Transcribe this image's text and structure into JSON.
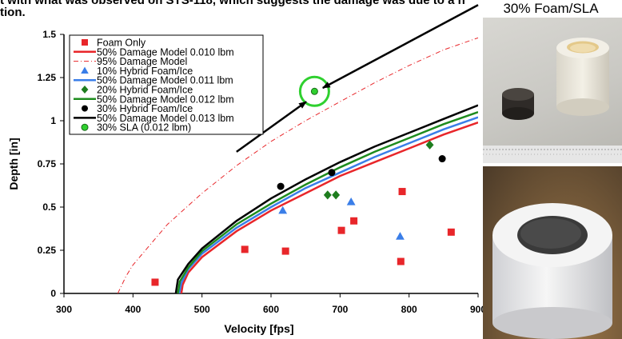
{
  "header_text": {
    "line1": "t with what was observed on STS-118, which suggests the damage was due to a h",
    "line2": "tion."
  },
  "photo_label": "30% Foam/SLA",
  "photos": {
    "top": "foam-cylinder-and-dark-sla-puck-photo",
    "bottom": "sla-core-in-foam-cylinder-photo"
  },
  "chart_data": {
    "type": "scatter",
    "xlabel": "Velocity [fps]",
    "ylabel": "Depth [in]",
    "xlim": [
      300,
      900
    ],
    "ylim": [
      0,
      1.5
    ],
    "xticks": [
      "300",
      "400",
      "500",
      "600",
      "700",
      "800",
      "900"
    ],
    "yticks": [
      "0",
      "0.25",
      "0.5",
      "0.75",
      "1",
      "1.25",
      "1.5"
    ],
    "grid": false,
    "legend_position": "top-left",
    "series": [
      {
        "name": "Foam Only",
        "kind": "points",
        "marker": "square",
        "color": "#e8262a",
        "points": [
          [
            432,
            0.065
          ],
          [
            562,
            0.255
          ],
          [
            621,
            0.245
          ],
          [
            702,
            0.365
          ],
          [
            720,
            0.42
          ],
          [
            790,
            0.59
          ],
          [
            788,
            0.185
          ],
          [
            861,
            0.355
          ]
        ]
      },
      {
        "name": "50% Damage Model 0.010 lbm",
        "kind": "curve",
        "style": "solid",
        "color": "#e8262a",
        "points": [
          [
            470,
            0
          ],
          [
            472,
            0.05
          ],
          [
            480,
            0.12
          ],
          [
            500,
            0.21
          ],
          [
            550,
            0.36
          ],
          [
            600,
            0.48
          ],
          [
            650,
            0.58
          ],
          [
            700,
            0.68
          ],
          [
            750,
            0.76
          ],
          [
            800,
            0.84
          ],
          [
            850,
            0.92
          ],
          [
            900,
            0.99
          ]
        ]
      },
      {
        "name": "95% Damage Model",
        "kind": "curve",
        "style": "dashdot",
        "color": "#e8262a",
        "points": [
          [
            378,
            0
          ],
          [
            390,
            0.1
          ],
          [
            400,
            0.165
          ],
          [
            450,
            0.4
          ],
          [
            500,
            0.58
          ],
          [
            550,
            0.74
          ],
          [
            600,
            0.88
          ],
          [
            650,
            1.0
          ],
          [
            700,
            1.11
          ],
          [
            750,
            1.22
          ],
          [
            800,
            1.32
          ],
          [
            850,
            1.41
          ],
          [
            900,
            1.48
          ]
        ]
      },
      {
        "name": "10% Hybrid Foam/Ice",
        "kind": "points",
        "marker": "triangle",
        "color": "#3a7ee8",
        "points": [
          [
            617,
            0.48
          ],
          [
            716,
            0.53
          ],
          [
            787,
            0.33
          ]
        ]
      },
      {
        "name": "50% Damage Model 0.011 lbm",
        "kind": "curve",
        "style": "solid",
        "color": "#3a7ee8",
        "points": [
          [
            467,
            0
          ],
          [
            470,
            0.06
          ],
          [
            480,
            0.14
          ],
          [
            500,
            0.23
          ],
          [
            550,
            0.38
          ],
          [
            600,
            0.5
          ],
          [
            650,
            0.61
          ],
          [
            700,
            0.7
          ],
          [
            750,
            0.79
          ],
          [
            800,
            0.87
          ],
          [
            850,
            0.95
          ],
          [
            900,
            1.02
          ]
        ]
      },
      {
        "name": "20% Hybrid Foam/Ice",
        "kind": "points",
        "marker": "diamond",
        "color": "#1e7d1e",
        "points": [
          [
            682,
            0.57
          ],
          [
            694,
            0.57
          ],
          [
            830,
            0.86
          ]
        ]
      },
      {
        "name": "50% Damage Model 0.012 lbm",
        "kind": "curve",
        "style": "solid",
        "color": "#1e8c1e",
        "points": [
          [
            465,
            0
          ],
          [
            468,
            0.07
          ],
          [
            480,
            0.15
          ],
          [
            500,
            0.245
          ],
          [
            550,
            0.4
          ],
          [
            600,
            0.52
          ],
          [
            650,
            0.63
          ],
          [
            700,
            0.73
          ],
          [
            750,
            0.82
          ],
          [
            800,
            0.9
          ],
          [
            850,
            0.98
          ],
          [
            900,
            1.05
          ]
        ]
      },
      {
        "name": "30% Hybrid Foam/Ice",
        "kind": "points",
        "marker": "circle",
        "color": "#000000",
        "points": [
          [
            614,
            0.62
          ],
          [
            688,
            0.7
          ],
          [
            848,
            0.78
          ]
        ]
      },
      {
        "name": "50% Damage Model 0.013 lbm",
        "kind": "curve",
        "style": "solid",
        "color": "#000000",
        "points": [
          [
            462,
            0
          ],
          [
            465,
            0.08
          ],
          [
            480,
            0.17
          ],
          [
            500,
            0.26
          ],
          [
            550,
            0.42
          ],
          [
            600,
            0.55
          ],
          [
            650,
            0.66
          ],
          [
            700,
            0.76
          ],
          [
            750,
            0.85
          ],
          [
            800,
            0.93
          ],
          [
            850,
            1.01
          ],
          [
            900,
            1.09
          ]
        ]
      },
      {
        "name": "30% SLA (0.012 lbm)",
        "kind": "points",
        "marker": "circle-hollow",
        "color": "#2fd02f",
        "points": [
          [
            663,
            1.17
          ]
        ]
      }
    ],
    "annotations": {
      "highlight_circle": {
        "x": 663,
        "y": 1.17,
        "color": "#2fd02f"
      },
      "arrows": [
        {
          "from": [
            550,
            0.82
          ],
          "to": [
            651,
            1.11
          ]
        },
        {
          "from": [
            900,
            1.67
          ],
          "to": [
            675,
            1.19
          ]
        }
      ]
    }
  }
}
